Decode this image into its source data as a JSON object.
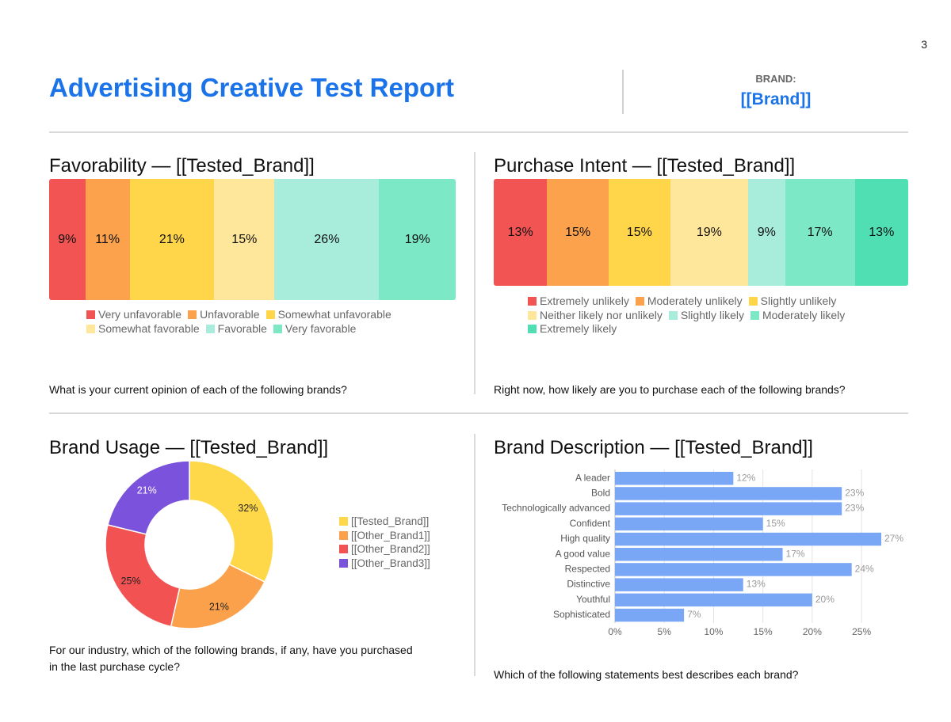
{
  "page": {
    "number": "3"
  },
  "header": {
    "title": "Advertising Creative Test Report",
    "brand_label": "BRAND:",
    "brand_value": "[[Brand]]"
  },
  "colors": {
    "accent": "#1a73e8",
    "scale7": [
      "#f25454",
      "#fca14c",
      "#ffd64a",
      "#fee69a",
      "#a8ecdb",
      "#7ce8c6",
      "#4fdfb2"
    ],
    "pie": [
      "#ffd84a",
      "#fba14b",
      "#f25252",
      "#7b52dc"
    ],
    "bar": "#7aa7f5"
  },
  "panels": {
    "favorability": {
      "title": "Favorability — [[Tested_Brand]]",
      "question": "What is your current opinion of each of the following brands?"
    },
    "purchase_intent": {
      "title": "Purchase Intent — [[Tested_Brand]]",
      "question": "Right now, how likely are you to purchase each of the following brands?"
    },
    "brand_usage": {
      "title": "Brand Usage — [[Tested_Brand]]",
      "question_line1": "For our industry, which of the following brands, if any, have you purchased",
      "question_line2": "in the last purchase cycle?"
    },
    "brand_description": {
      "title": "Brand Description — [[Tested_Brand]]",
      "question": "Which of the following statements best describes each brand?"
    }
  },
  "chart_data": [
    {
      "type": "bar",
      "stacked": true,
      "orientation": "horizontal",
      "title": "Favorability — [[Tested_Brand]]",
      "categories": [
        "[[Tested_Brand]]"
      ],
      "series": [
        {
          "name": "Very unfavorable",
          "values": [
            9
          ],
          "label": "9%",
          "color": "#f25454"
        },
        {
          "name": "Unfavorable",
          "values": [
            11
          ],
          "label": "11%",
          "color": "#fca14c"
        },
        {
          "name": "Somewhat unfavorable",
          "values": [
            21
          ],
          "label": "21%",
          "color": "#ffd64a"
        },
        {
          "name": "Somewhat favorable",
          "values": [
            15
          ],
          "label": "15%",
          "color": "#fee69a"
        },
        {
          "name": "Favorable",
          "values": [
            26
          ],
          "label": "26%",
          "color": "#a8ecdb"
        },
        {
          "name": "Very favorable",
          "values": [
            19
          ],
          "label": "19%",
          "color": "#7ce8c6"
        }
      ],
      "legend": "bottom"
    },
    {
      "type": "bar",
      "stacked": true,
      "orientation": "horizontal",
      "title": "Purchase Intent — [[Tested_Brand]]",
      "categories": [
        "[[Tested_Brand]]"
      ],
      "series": [
        {
          "name": "Extremely unlikely",
          "values": [
            13
          ],
          "label": "13%",
          "color": "#f25454"
        },
        {
          "name": "Moderately unlikely",
          "values": [
            15
          ],
          "label": "15%",
          "color": "#fca14c"
        },
        {
          "name": "Slightly unlikely",
          "values": [
            15
          ],
          "label": "15%",
          "color": "#ffd64a"
        },
        {
          "name": "Neither likely nor unlikely",
          "values": [
            19
          ],
          "label": "19%",
          "color": "#fee69a"
        },
        {
          "name": "Slightly likely",
          "values": [
            9
          ],
          "label": "9%",
          "color": "#a8ecdb"
        },
        {
          "name": "Moderately likely",
          "values": [
            17
          ],
          "label": "17%",
          "color": "#7ce8c6"
        },
        {
          "name": "Extremely likely",
          "values": [
            13
          ],
          "label": "13%",
          "color": "#4fdfb2"
        }
      ],
      "legend": "bottom"
    },
    {
      "type": "pie",
      "donut": true,
      "title": "Brand Usage — [[Tested_Brand]]",
      "slices": [
        {
          "name": "[[Tested_Brand]]",
          "value": 32,
          "label": "32%",
          "color": "#ffd84a"
        },
        {
          "name": "[[Other_Brand1]]",
          "value": 21,
          "label": "21%",
          "color": "#fba14b"
        },
        {
          "name": "[[Other_Brand2]]",
          "value": 25,
          "label": "25%",
          "color": "#f25252"
        },
        {
          "name": "[[Other_Brand3]]",
          "value": 21,
          "label": "21%",
          "color": "#7b52dc"
        }
      ],
      "legend": "right"
    },
    {
      "type": "bar",
      "orientation": "horizontal",
      "title": "Brand Description — [[Tested_Brand]]",
      "categories": [
        "A leader",
        "Bold",
        "Technologically advanced",
        "Confident",
        "High quality",
        "A good value",
        "Respected",
        "Distinctive",
        "Youthful",
        "Sophisticated"
      ],
      "values": [
        12,
        23,
        23,
        15,
        27,
        17,
        24,
        13,
        20,
        7
      ],
      "value_labels": [
        "12%",
        "23%",
        "23%",
        "15%",
        "27%",
        "17%",
        "24%",
        "13%",
        "20%",
        "7%"
      ],
      "xlim": [
        0,
        27
      ],
      "xticks": [
        0,
        5,
        10,
        15,
        20,
        25
      ],
      "xtick_labels": [
        "0%",
        "5%",
        "10%",
        "15%",
        "20%",
        "25%"
      ],
      "grid": true,
      "color": "#7aa7f5"
    }
  ]
}
